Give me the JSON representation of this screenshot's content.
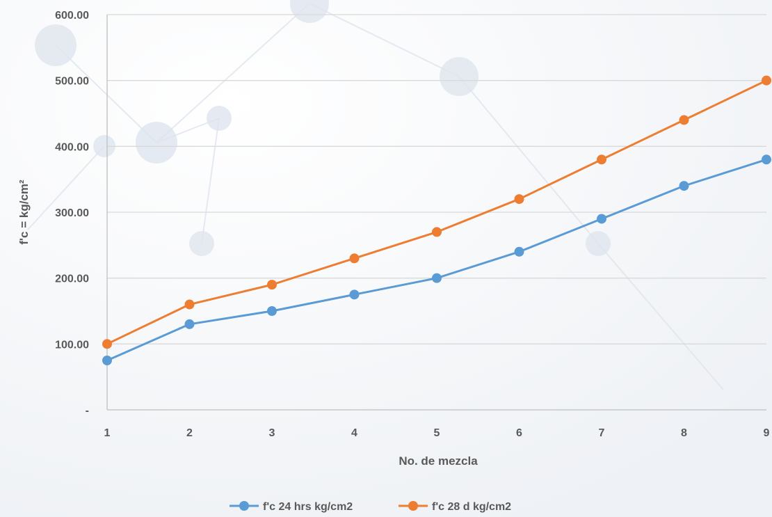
{
  "chart_data": {
    "type": "line",
    "title": "",
    "xlabel": "No. de mezcla",
    "ylabel": "f'c = kg/cm²",
    "x": [
      1,
      2,
      3,
      4,
      5,
      6,
      7,
      8,
      9
    ],
    "ylim": [
      0,
      600
    ],
    "y_ticks": [
      0,
      100,
      200,
      300,
      400,
      500,
      600
    ],
    "y_tick_labels": [
      "-",
      "100.00",
      "200.00",
      "300.00",
      "400.00",
      "500.00",
      "600.00"
    ],
    "grid": true,
    "legend_position": "bottom",
    "series": [
      {
        "name": "f'c 24 hrs kg/cm2",
        "color": "#5b9bd5",
        "values": [
          75,
          130,
          150,
          175,
          200,
          240,
          290,
          340,
          380
        ]
      },
      {
        "name": "f'c 28 d kg/cm2",
        "color": "#ed7d31",
        "values": [
          100,
          160,
          190,
          230,
          270,
          320,
          380,
          440,
          500
        ]
      }
    ]
  }
}
